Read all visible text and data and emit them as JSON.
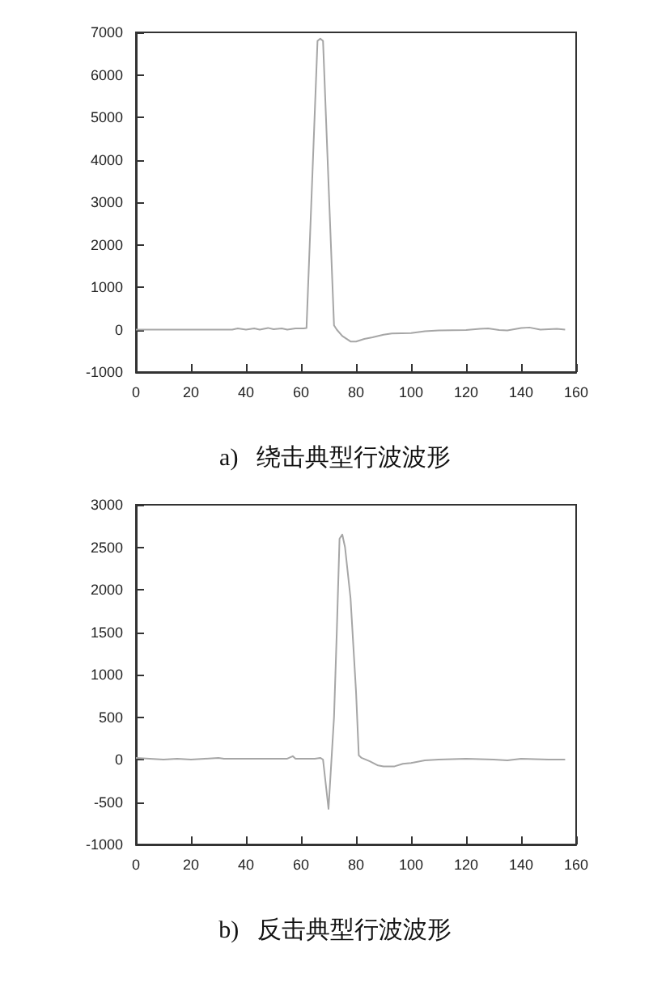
{
  "chart_data": [
    {
      "type": "line",
      "title": "a)   绕击典型行波波形",
      "xlim": [
        0,
        160
      ],
      "xticks": [
        0,
        20,
        40,
        60,
        80,
        100,
        120,
        140,
        160
      ],
      "ylim": [
        -1000,
        7000
      ],
      "yticks": [
        -1000,
        0,
        1000,
        2000,
        3000,
        4000,
        5000,
        6000,
        7000
      ],
      "grid": false,
      "marker": "none",
      "line_style": "solid",
      "series": [
        {
          "color": "#a6a6a6",
          "x": [
            0,
            35,
            37,
            40,
            43,
            45,
            48,
            50,
            53,
            55,
            58,
            61,
            62,
            66,
            67,
            68,
            72,
            73,
            75,
            78,
            80,
            83,
            86,
            90,
            93,
            100,
            105,
            110,
            120,
            125,
            128,
            132,
            135,
            140,
            143,
            147,
            150,
            153,
            156
          ],
          "values": [
            0,
            0,
            30,
            0,
            30,
            0,
            40,
            10,
            30,
            0,
            30,
            30,
            40,
            6800,
            6850,
            6800,
            100,
            0,
            -150,
            -280,
            -280,
            -220,
            -180,
            -120,
            -90,
            -80,
            -40,
            -20,
            -10,
            20,
            30,
            -10,
            -20,
            40,
            50,
            0,
            10,
            20,
            0
          ]
        }
      ]
    },
    {
      "type": "line",
      "title": "b)   反击典型行波波形",
      "xlim": [
        0,
        160
      ],
      "xticks": [
        0,
        20,
        40,
        60,
        80,
        100,
        120,
        140,
        160
      ],
      "ylim": [
        -1000,
        3000
      ],
      "yticks": [
        -1000,
        -500,
        0,
        500,
        1000,
        1500,
        2000,
        2500,
        3000
      ],
      "grid": false,
      "marker": "none",
      "line_style": "solid",
      "series": [
        {
          "color": "#a6a6a6",
          "x": [
            0,
            5,
            10,
            15,
            20,
            25,
            30,
            32,
            40,
            50,
            55,
            57,
            58,
            65,
            67,
            68,
            70,
            72,
            73,
            74,
            75,
            76,
            78,
            80,
            81,
            82,
            85,
            88,
            90,
            94,
            97,
            100,
            105,
            110,
            120,
            130,
            135,
            140,
            150,
            156
          ],
          "values": [
            20,
            10,
            0,
            10,
            0,
            10,
            20,
            10,
            10,
            10,
            10,
            40,
            10,
            10,
            20,
            0,
            -580,
            500,
            1500,
            2600,
            2650,
            2500,
            1900,
            800,
            50,
            20,
            -20,
            -70,
            -80,
            -80,
            -50,
            -40,
            -10,
            0,
            10,
            0,
            -10,
            10,
            0,
            0
          ]
        }
      ]
    }
  ]
}
